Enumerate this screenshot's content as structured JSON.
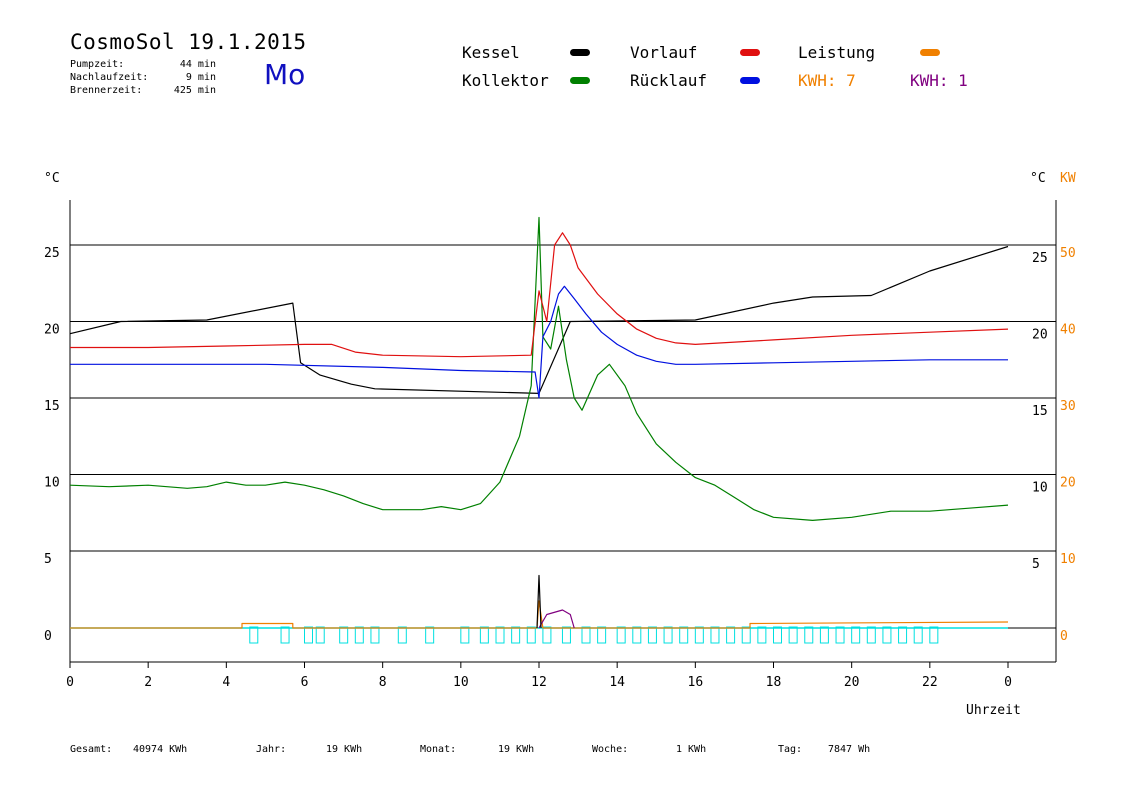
{
  "header": {
    "title": "CosmoSol 19.1.2015",
    "day": "Mo",
    "stats": [
      {
        "label": "Pumpzeit:",
        "value": "44 min"
      },
      {
        "label": "Nachlaufzeit:",
        "value": "9 min"
      },
      {
        "label": "Brennerzeit:",
        "value": "425 min"
      }
    ]
  },
  "legend": {
    "kessel": "Kessel",
    "kollektor": "Kollektor",
    "vorlauf": "Vorlauf",
    "ruecklauf": "Rücklauf",
    "leistung": "Leistung",
    "kwh_orange": "KWH: 7",
    "kwh_purple": "KWH: 1"
  },
  "colors": {
    "kessel": "#000000",
    "kollektor": "#008000",
    "vorlauf": "#e01010",
    "ruecklauf": "#0010e0",
    "leistung": "#f08000",
    "kwh_purple": "#800080",
    "pump": "#00e0e0"
  },
  "footer": {
    "gesamt_label": "Gesamt:",
    "gesamt_value": "40974 KWh",
    "jahr_label": "Jahr:",
    "jahr_value": "19 KWh",
    "monat_label": "Monat:",
    "monat_value": "19 KWh",
    "woche_label": "Woche:",
    "woche_value": "1 KWh",
    "tag_label": "Tag:",
    "tag_value": "7847 Wh"
  },
  "chart_data": {
    "type": "line",
    "xlabel": "Uhrzeit",
    "x_ticks": [
      "0",
      "2",
      "4",
      "6",
      "8",
      "10",
      "12",
      "14",
      "16",
      "18",
      "20",
      "22",
      "0"
    ],
    "xlim": [
      0,
      24
    ],
    "left_unit": "°C",
    "right_unit_c": "°C",
    "right_unit_kw": "KW",
    "upper_left_ticks": [
      "25",
      "20",
      "15",
      "10",
      "5"
    ],
    "upper_right_c_ticks": [
      "25",
      "20",
      "15",
      "10",
      "5"
    ],
    "right_kw_ticks": [
      "50",
      "40",
      "30",
      "20",
      "10",
      "0"
    ],
    "lower_left_ticks": [
      "0"
    ],
    "grid": true,
    "series": [
      {
        "key": "kessel",
        "name": "Kessel",
        "panel": "upper",
        "points": [
          [
            0,
            19.2
          ],
          [
            1.3,
            20.0
          ],
          [
            3.5,
            20.1
          ],
          [
            5.7,
            21.2
          ],
          [
            5.9,
            17.3
          ],
          [
            6.4,
            16.5
          ],
          [
            7.2,
            15.9
          ],
          [
            7.8,
            15.6
          ],
          [
            12.0,
            15.3
          ],
          [
            12.8,
            20.0
          ],
          [
            16.0,
            20.1
          ],
          [
            18.0,
            21.2
          ],
          [
            19.0,
            21.6
          ],
          [
            20.5,
            21.7
          ],
          [
            22.0,
            23.3
          ],
          [
            24.0,
            24.9
          ]
        ]
      },
      {
        "key": "kollektor",
        "name": "Kollektor",
        "panel": "upper",
        "points": [
          [
            0,
            9.3
          ],
          [
            1,
            9.2
          ],
          [
            2,
            9.3
          ],
          [
            3,
            9.1
          ],
          [
            3.5,
            9.2
          ],
          [
            4,
            9.5
          ],
          [
            4.5,
            9.3
          ],
          [
            5,
            9.3
          ],
          [
            5.5,
            9.5
          ],
          [
            6,
            9.3
          ],
          [
            6.5,
            9.0
          ],
          [
            7,
            8.6
          ],
          [
            7.5,
            8.1
          ],
          [
            8,
            7.7
          ],
          [
            9,
            7.7
          ],
          [
            9.5,
            7.9
          ],
          [
            10,
            7.7
          ],
          [
            10.5,
            8.1
          ],
          [
            11,
            9.5
          ],
          [
            11.5,
            12.5
          ],
          [
            11.8,
            15.8
          ],
          [
            12.0,
            26.8
          ],
          [
            12.1,
            19.0
          ],
          [
            12.3,
            18.2
          ],
          [
            12.5,
            21.0
          ],
          [
            12.7,
            17.5
          ],
          [
            12.9,
            15.0
          ],
          [
            13.1,
            14.2
          ],
          [
            13.5,
            16.5
          ],
          [
            13.8,
            17.2
          ],
          [
            14.2,
            15.8
          ],
          [
            14.5,
            14.0
          ],
          [
            15,
            12.0
          ],
          [
            15.5,
            10.8
          ],
          [
            16,
            9.8
          ],
          [
            16.5,
            9.3
          ],
          [
            17,
            8.5
          ],
          [
            17.5,
            7.7
          ],
          [
            18,
            7.2
          ],
          [
            19,
            7.0
          ],
          [
            20,
            7.2
          ],
          [
            21,
            7.6
          ],
          [
            22,
            7.6
          ],
          [
            23,
            7.8
          ],
          [
            24,
            8.0
          ]
        ]
      },
      {
        "key": "vorlauf",
        "name": "Vorlauf",
        "panel": "upper",
        "points": [
          [
            0,
            18.3
          ],
          [
            2,
            18.3
          ],
          [
            4,
            18.4
          ],
          [
            6,
            18.5
          ],
          [
            6.7,
            18.5
          ],
          [
            7.3,
            18.0
          ],
          [
            8,
            17.8
          ],
          [
            10,
            17.7
          ],
          [
            11.8,
            17.8
          ],
          [
            12.0,
            22.0
          ],
          [
            12.2,
            20.0
          ],
          [
            12.4,
            25.0
          ],
          [
            12.6,
            25.8
          ],
          [
            12.8,
            25.0
          ],
          [
            13.0,
            23.5
          ],
          [
            13.5,
            21.8
          ],
          [
            14.0,
            20.5
          ],
          [
            14.5,
            19.5
          ],
          [
            15.0,
            18.9
          ],
          [
            15.5,
            18.6
          ],
          [
            16,
            18.5
          ],
          [
            18,
            18.8
          ],
          [
            20,
            19.1
          ],
          [
            22,
            19.3
          ],
          [
            24,
            19.5
          ]
        ]
      },
      {
        "key": "ruecklauf",
        "name": "Rücklauf",
        "panel": "upper",
        "points": [
          [
            0,
            17.2
          ],
          [
            5,
            17.2
          ],
          [
            8,
            17.0
          ],
          [
            10,
            16.8
          ],
          [
            11.9,
            16.7
          ],
          [
            12.0,
            15.0
          ],
          [
            12.1,
            19.0
          ],
          [
            12.3,
            20.0
          ],
          [
            12.5,
            21.8
          ],
          [
            12.65,
            22.3
          ],
          [
            12.9,
            21.5
          ],
          [
            13.2,
            20.5
          ],
          [
            13.6,
            19.3
          ],
          [
            14.0,
            18.5
          ],
          [
            14.5,
            17.8
          ],
          [
            15.0,
            17.4
          ],
          [
            15.5,
            17.2
          ],
          [
            16,
            17.2
          ],
          [
            18,
            17.3
          ],
          [
            20,
            17.4
          ],
          [
            22,
            17.5
          ],
          [
            24,
            17.5
          ]
        ]
      },
      {
        "key": "leistung",
        "name": "Leistung",
        "panel": "lower",
        "points": [
          [
            0,
            0
          ],
          [
            4.4,
            0
          ],
          [
            4.4,
            0.3
          ],
          [
            5.7,
            0.3
          ],
          [
            5.7,
            0
          ],
          [
            11.95,
            0
          ],
          [
            12.0,
            1.8
          ],
          [
            12.1,
            0
          ],
          [
            17.4,
            0
          ],
          [
            17.4,
            0.3
          ],
          [
            24,
            0.4
          ]
        ]
      },
      {
        "key": "kwh_purple",
        "name": "KWH",
        "panel": "lower",
        "points": [
          [
            12.0,
            0
          ],
          [
            12.2,
            0.9
          ],
          [
            12.6,
            1.2
          ],
          [
            12.8,
            0.9
          ],
          [
            12.9,
            0
          ]
        ]
      },
      {
        "key": "kessel",
        "name": "Kessel",
        "panel": "lower",
        "points": [
          [
            11.95,
            0
          ],
          [
            12.0,
            3.5
          ],
          [
            12.05,
            0
          ]
        ]
      }
    ]
  }
}
